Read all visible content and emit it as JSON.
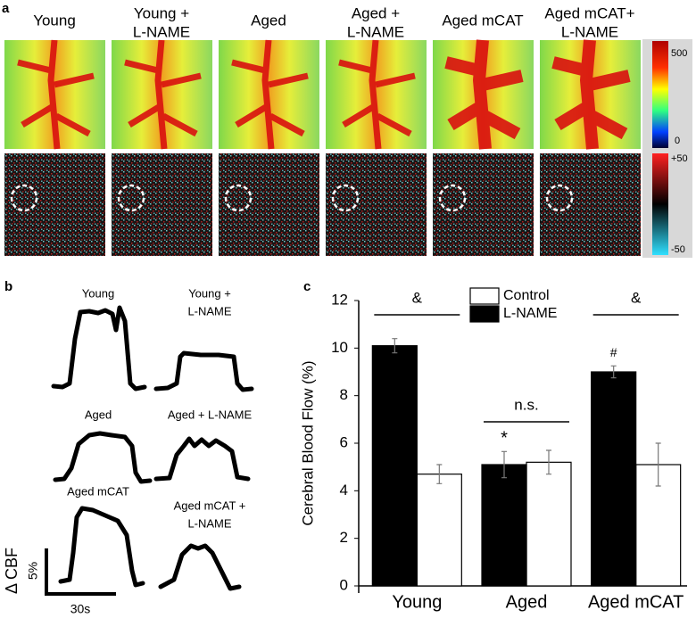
{
  "panel_labels": [
    "a",
    "b",
    "c"
  ],
  "panel_a": {
    "labels": [
      [
        "Young"
      ],
      [
        "Young +",
        "L-NAME"
      ],
      [
        "Aged"
      ],
      [
        "Aged +",
        "L-NAME"
      ],
      [
        "Aged mCAT"
      ],
      [
        "Aged mCAT+",
        "L-NAME"
      ]
    ],
    "colorbar_top": [
      "500",
      "0"
    ],
    "colorbar_bottom": [
      "+50",
      "-50"
    ]
  },
  "panel_b": {
    "labels": [
      [
        "Young"
      ],
      [
        "Young +",
        "L-NAME"
      ],
      [
        "Aged"
      ],
      [
        "Aged + L-NAME"
      ],
      [
        "Aged mCAT"
      ],
      [
        "Aged mCAT +",
        "L-NAME"
      ]
    ],
    "scale_y_label": "Δ CBF",
    "scale_y_value": "5%",
    "scale_x_value": "30s"
  },
  "chart_data": {
    "type": "bar",
    "y_label": "Cerebral Blood Flow (%)",
    "categories": [
      "Young",
      "Aged",
      "Aged mCAT"
    ],
    "series": [
      {
        "name": "Control",
        "color": "#ffffff",
        "values": [
          4.7,
          5.2,
          5.1
        ],
        "errors": [
          0.4,
          0.5,
          0.9
        ]
      },
      {
        "name": "L-NAME",
        "color": "#000000",
        "values": [
          10.1,
          5.1,
          9.0
        ],
        "errors": [
          0.3,
          0.55,
          0.25
        ]
      }
    ],
    "annotations": [
      "&",
      "n.s.",
      "&",
      "*",
      "#"
    ],
    "ylim": [
      0,
      12
    ],
    "yticks": [
      0,
      2,
      4,
      6,
      8,
      10,
      12
    ],
    "grid": false
  }
}
